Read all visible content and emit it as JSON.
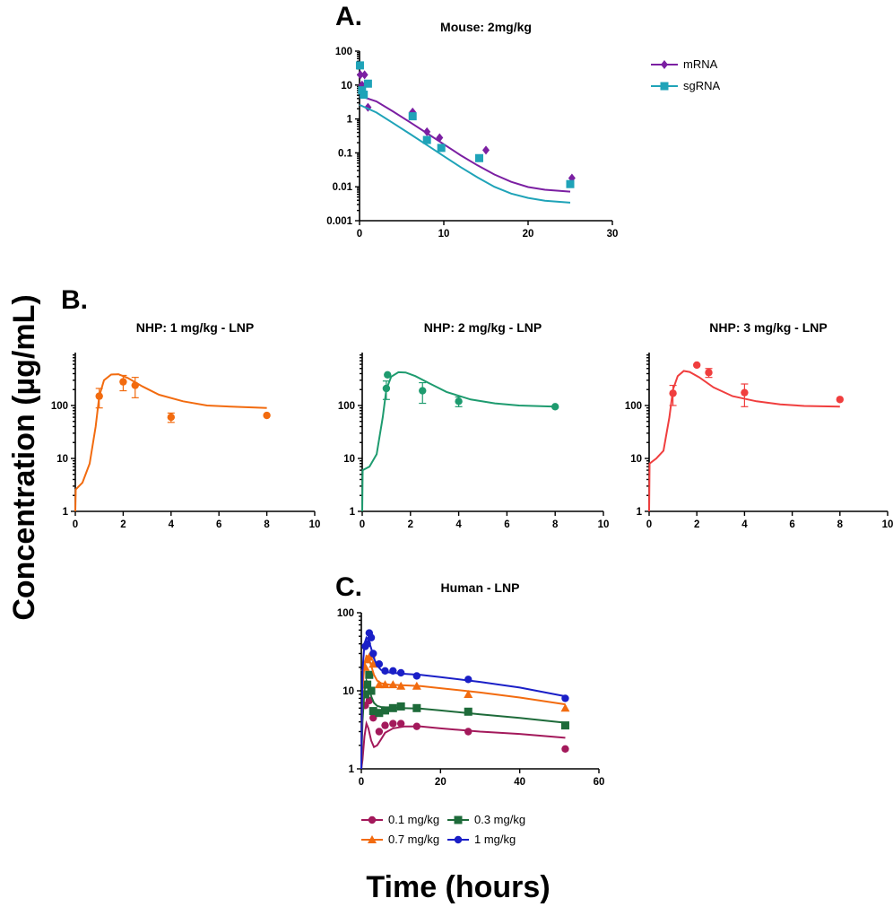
{
  "labels": {
    "y_axis": "Concentration (µg/mL)",
    "x_axis": "Time (hours)",
    "panel_a": "A.",
    "panel_b": "B.",
    "panel_c": "C."
  },
  "chart_data": [
    {
      "id": "mouse",
      "type": "scatter",
      "title": "Mouse: 2mg/kg",
      "xscale": "linear",
      "yscale": "log",
      "xlim": [
        0,
        30
      ],
      "ylim": [
        0.001,
        100
      ],
      "xticks": [
        0,
        10,
        20,
        30
      ],
      "xtick_labels": [
        "0",
        "10",
        "20",
        "30"
      ],
      "yticks": [
        0.001,
        0.01,
        0.1,
        1,
        10,
        100
      ],
      "ytick_labels": [
        "0.001",
        "0.01",
        "0.1",
        "1",
        "10",
        "100"
      ],
      "legend_position": "right",
      "series": [
        {
          "name": "mRNA",
          "marker": "diamond",
          "color": "#7B1FA2",
          "points": [
            [
              0.1,
              20
            ],
            [
              0.3,
              10
            ],
            [
              0.5,
              6
            ],
            [
              0.6,
              20
            ],
            [
              1,
              2.2
            ],
            [
              6.3,
              1.6
            ],
            [
              8,
              0.42
            ],
            [
              9.5,
              0.28
            ],
            [
              15,
              0.12
            ],
            [
              25.2,
              0.018
            ]
          ],
          "fit": [
            [
              0,
              4.8
            ],
            [
              2,
              3.3
            ],
            [
              4,
              1.65
            ],
            [
              6,
              0.8
            ],
            [
              8,
              0.38
            ],
            [
              10,
              0.18
            ],
            [
              12,
              0.085
            ],
            [
              14,
              0.043
            ],
            [
              16,
              0.023
            ],
            [
              18,
              0.014
            ],
            [
              20,
              0.0098
            ],
            [
              22,
              0.0082
            ],
            [
              25,
              0.0072
            ]
          ]
        },
        {
          "name": "sgRNA",
          "marker": "square",
          "color": "#1FA3B8",
          "points": [
            [
              0.05,
              38
            ],
            [
              0.3,
              7
            ],
            [
              0.5,
              5.2
            ],
            [
              1,
              11
            ],
            [
              6.3,
              1.2
            ],
            [
              8,
              0.24
            ],
            [
              9.7,
              0.14
            ],
            [
              14.2,
              0.07
            ],
            [
              25,
              0.012
            ]
          ],
          "fit": [
            [
              0,
              2.6
            ],
            [
              2,
              1.55
            ],
            [
              4,
              0.75
            ],
            [
              6,
              0.36
            ],
            [
              8,
              0.17
            ],
            [
              10,
              0.08
            ],
            [
              12,
              0.038
            ],
            [
              14,
              0.019
            ],
            [
              16,
              0.01
            ],
            [
              18,
              0.0063
            ],
            [
              20,
              0.0047
            ],
            [
              22,
              0.0039
            ],
            [
              25,
              0.0034
            ]
          ]
        }
      ]
    },
    {
      "id": "nhp1",
      "type": "scatter",
      "title": "NHP: 1 mg/kg - LNP",
      "xscale": "linear",
      "yscale": "log",
      "xlim": [
        0,
        10
      ],
      "ylim": [
        1,
        1000
      ],
      "xticks": [
        0,
        2,
        4,
        6,
        8,
        10
      ],
      "xtick_labels": [
        "0",
        "2",
        "4",
        "6",
        "8",
        "10"
      ],
      "yticks": [
        1,
        10,
        100
      ],
      "ytick_labels": [
        "1",
        "10",
        "100"
      ],
      "series": [
        {
          "name": "NHP 1 mg/kg",
          "marker": "circle",
          "color": "#F26B0F",
          "points": [
            [
              1,
              150,
              60
            ],
            [
              2,
              280,
              90
            ],
            [
              2.5,
              240,
              100
            ],
            [
              4,
              60,
              12
            ],
            [
              8,
              65,
              0
            ]
          ],
          "fit": [
            [
              0,
              1
            ],
            [
              0.02,
              2.6
            ],
            [
              0.3,
              3.5
            ],
            [
              0.6,
              8
            ],
            [
              0.85,
              40
            ],
            [
              1.0,
              150
            ],
            [
              1.2,
              300
            ],
            [
              1.5,
              385
            ],
            [
              1.8,
              390
            ],
            [
              2.2,
              330
            ],
            [
              2.8,
              230
            ],
            [
              3.5,
              160
            ],
            [
              4.5,
              120
            ],
            [
              5.5,
              100
            ],
            [
              6.5,
              95
            ],
            [
              8,
              90
            ]
          ]
        }
      ]
    },
    {
      "id": "nhp2",
      "type": "scatter",
      "title": "NHP: 2 mg/kg - LNP",
      "xscale": "linear",
      "yscale": "log",
      "xlim": [
        0,
        10
      ],
      "ylim": [
        1,
        1000
      ],
      "xticks": [
        0,
        2,
        4,
        6,
        8,
        10
      ],
      "xtick_labels": [
        "0",
        "2",
        "4",
        "6",
        "8",
        "10"
      ],
      "yticks": [
        1,
        10,
        100
      ],
      "ytick_labels": [
        "1",
        "10",
        "100"
      ],
      "series": [
        {
          "name": "NHP 2 mg/kg",
          "marker": "circle",
          "color": "#1E9B6F",
          "points": [
            [
              1,
              210,
              80
            ],
            [
              1.05,
              380,
              0
            ],
            [
              2.5,
              190,
              80
            ],
            [
              4,
              120,
              25
            ],
            [
              8,
              95,
              0
            ]
          ],
          "fit": [
            [
              0,
              1
            ],
            [
              0.02,
              6
            ],
            [
              0.3,
              7
            ],
            [
              0.6,
              12
            ],
            [
              0.85,
              60
            ],
            [
              1.0,
              200
            ],
            [
              1.2,
              350
            ],
            [
              1.5,
              425
            ],
            [
              1.8,
              420
            ],
            [
              2.2,
              360
            ],
            [
              2.8,
              260
            ],
            [
              3.5,
              180
            ],
            [
              4.5,
              130
            ],
            [
              5.5,
              110
            ],
            [
              6.5,
              100
            ],
            [
              8,
              95
            ]
          ]
        }
      ]
    },
    {
      "id": "nhp3",
      "type": "scatter",
      "title": "NHP: 3 mg/kg - LNP",
      "xscale": "linear",
      "yscale": "log",
      "xlim": [
        0,
        10
      ],
      "ylim": [
        1,
        1000
      ],
      "xticks": [
        0,
        2,
        4,
        6,
        8,
        10
      ],
      "xtick_labels": [
        "0",
        "2",
        "4",
        "6",
        "8",
        "10"
      ],
      "yticks": [
        1,
        10,
        100
      ],
      "ytick_labels": [
        "1",
        "10",
        "100"
      ],
      "series": [
        {
          "name": "NHP 3 mg/kg",
          "marker": "circle",
          "color": "#F03E3E",
          "points": [
            [
              1,
              170,
              70
            ],
            [
              2,
              580,
              0
            ],
            [
              2.5,
              420,
              80
            ],
            [
              4,
              175,
              80
            ],
            [
              8,
              130,
              0
            ]
          ],
          "fit": [
            [
              0,
              1
            ],
            [
              0.02,
              8
            ],
            [
              0.3,
              10
            ],
            [
              0.6,
              14
            ],
            [
              0.85,
              60
            ],
            [
              1.0,
              200
            ],
            [
              1.2,
              360
            ],
            [
              1.45,
              450
            ],
            [
              1.7,
              430
            ],
            [
              2.1,
              340
            ],
            [
              2.7,
              220
            ],
            [
              3.5,
              150
            ],
            [
              4.5,
              120
            ],
            [
              5.5,
              105
            ],
            [
              6.5,
              98
            ],
            [
              8,
              95
            ]
          ]
        }
      ]
    },
    {
      "id": "human",
      "type": "scatter",
      "title": "Human - LNP",
      "xscale": "linear",
      "yscale": "log",
      "xlim": [
        0,
        60
      ],
      "ylim": [
        1,
        100
      ],
      "xticks": [
        0,
        20,
        40,
        60
      ],
      "xtick_labels": [
        "0",
        "20",
        "40",
        "60"
      ],
      "yticks": [
        1,
        10,
        100
      ],
      "ytick_labels": [
        "1",
        "10",
        "100"
      ],
      "legend_position": "bottom",
      "series": [
        {
          "name": "0.1 mg/kg",
          "marker": "circle",
          "color": "#A3195B",
          "points": [
            [
              1,
              6.5
            ],
            [
              2,
              7.5
            ],
            [
              3,
              4.5
            ],
            [
              4.5,
              3
            ],
            [
              6,
              3.6
            ],
            [
              8,
              3.8
            ],
            [
              10,
              3.8
            ],
            [
              14,
              3.5
            ],
            [
              27,
              3
            ],
            [
              51.5,
              1.8
            ]
          ],
          "fit": [
            [
              0,
              1
            ],
            [
              0.3,
              1.3
            ],
            [
              0.8,
              2.6
            ],
            [
              1.3,
              3.8
            ],
            [
              1.8,
              3.3
            ],
            [
              2.5,
              2.3
            ],
            [
              3.2,
              1.9
            ],
            [
              4,
              2.0
            ],
            [
              5,
              2.4
            ],
            [
              6,
              2.9
            ],
            [
              8,
              3.3
            ],
            [
              11,
              3.5
            ],
            [
              15,
              3.5
            ],
            [
              20,
              3.3
            ],
            [
              30,
              3.0
            ],
            [
              40,
              2.8
            ],
            [
              51.5,
              2.5
            ]
          ]
        },
        {
          "name": "0.3 mg/kg",
          "marker": "square",
          "color": "#1E6B3A",
          "points": [
            [
              1,
              9
            ],
            [
              1.5,
              12
            ],
            [
              2,
              16
            ],
            [
              2.5,
              10
            ],
            [
              3,
              5.5
            ],
            [
              4.5,
              5.2
            ],
            [
              6,
              5.6
            ],
            [
              8,
              6
            ],
            [
              10,
              6.3
            ],
            [
              14,
              6
            ],
            [
              27,
              5.4
            ],
            [
              51.5,
              3.6
            ]
          ],
          "fit": [
            [
              0,
              1
            ],
            [
              0.3,
              4
            ],
            [
              0.8,
              10
            ],
            [
              1.3,
              13.5
            ],
            [
              1.8,
              12
            ],
            [
              2.5,
              8.5
            ],
            [
              3.2,
              7
            ],
            [
              4,
              6.4
            ],
            [
              5,
              6.2
            ],
            [
              7,
              6.1
            ],
            [
              10,
              6.0
            ],
            [
              15,
              5.9
            ],
            [
              20,
              5.6
            ],
            [
              30,
              5.0
            ],
            [
              40,
              4.5
            ],
            [
              51.5,
              3.9
            ]
          ]
        },
        {
          "name": "0.7 mg/kg",
          "marker": "triangle",
          "color": "#F26B0F",
          "points": [
            [
              1,
              20
            ],
            [
              1.5,
              25
            ],
            [
              2,
              27
            ],
            [
              2.5,
              29
            ],
            [
              3,
              22
            ],
            [
              4.5,
              12
            ],
            [
              6,
              12
            ],
            [
              8,
              12
            ],
            [
              10,
              11.5
            ],
            [
              14,
              11.5
            ],
            [
              27,
              9
            ],
            [
              51.5,
              6
            ]
          ],
          "fit": [
            [
              0,
              1
            ],
            [
              0.3,
              10
            ],
            [
              0.8,
              22
            ],
            [
              1.3,
              28
            ],
            [
              1.8,
              27
            ],
            [
              2.5,
              21
            ],
            [
              3.2,
              16
            ],
            [
              4,
              13.5
            ],
            [
              5,
              12.5
            ],
            [
              7,
              12
            ],
            [
              10,
              11.8
            ],
            [
              15,
              11.5
            ],
            [
              20,
              10.8
            ],
            [
              30,
              9.5
            ],
            [
              40,
              8.2
            ],
            [
              51.5,
              6.7
            ]
          ]
        },
        {
          "name": "1 mg/kg",
          "marker": "circle",
          "color": "#1A1FC7",
          "points": [
            [
              1,
              37
            ],
            [
              1.5,
              40
            ],
            [
              2,
              55
            ],
            [
              2.5,
              48
            ],
            [
              3,
              30
            ],
            [
              4.5,
              22
            ],
            [
              6,
              18
            ],
            [
              8,
              18
            ],
            [
              10,
              17
            ],
            [
              14,
              15.5
            ],
            [
              27,
              14
            ],
            [
              51.5,
              8
            ]
          ],
          "fit": [
            [
              0,
              1
            ],
            [
              0.3,
              18
            ],
            [
              0.8,
              40
            ],
            [
              1.3,
              48
            ],
            [
              1.8,
              45
            ],
            [
              2.5,
              35
            ],
            [
              3.2,
              26
            ],
            [
              4,
              21
            ],
            [
              5,
              18.5
            ],
            [
              7,
              17.2
            ],
            [
              10,
              16.6
            ],
            [
              15,
              16
            ],
            [
              20,
              15
            ],
            [
              30,
              13
            ],
            [
              40,
              11
            ],
            [
              51.5,
              8.5
            ]
          ]
        }
      ]
    }
  ]
}
